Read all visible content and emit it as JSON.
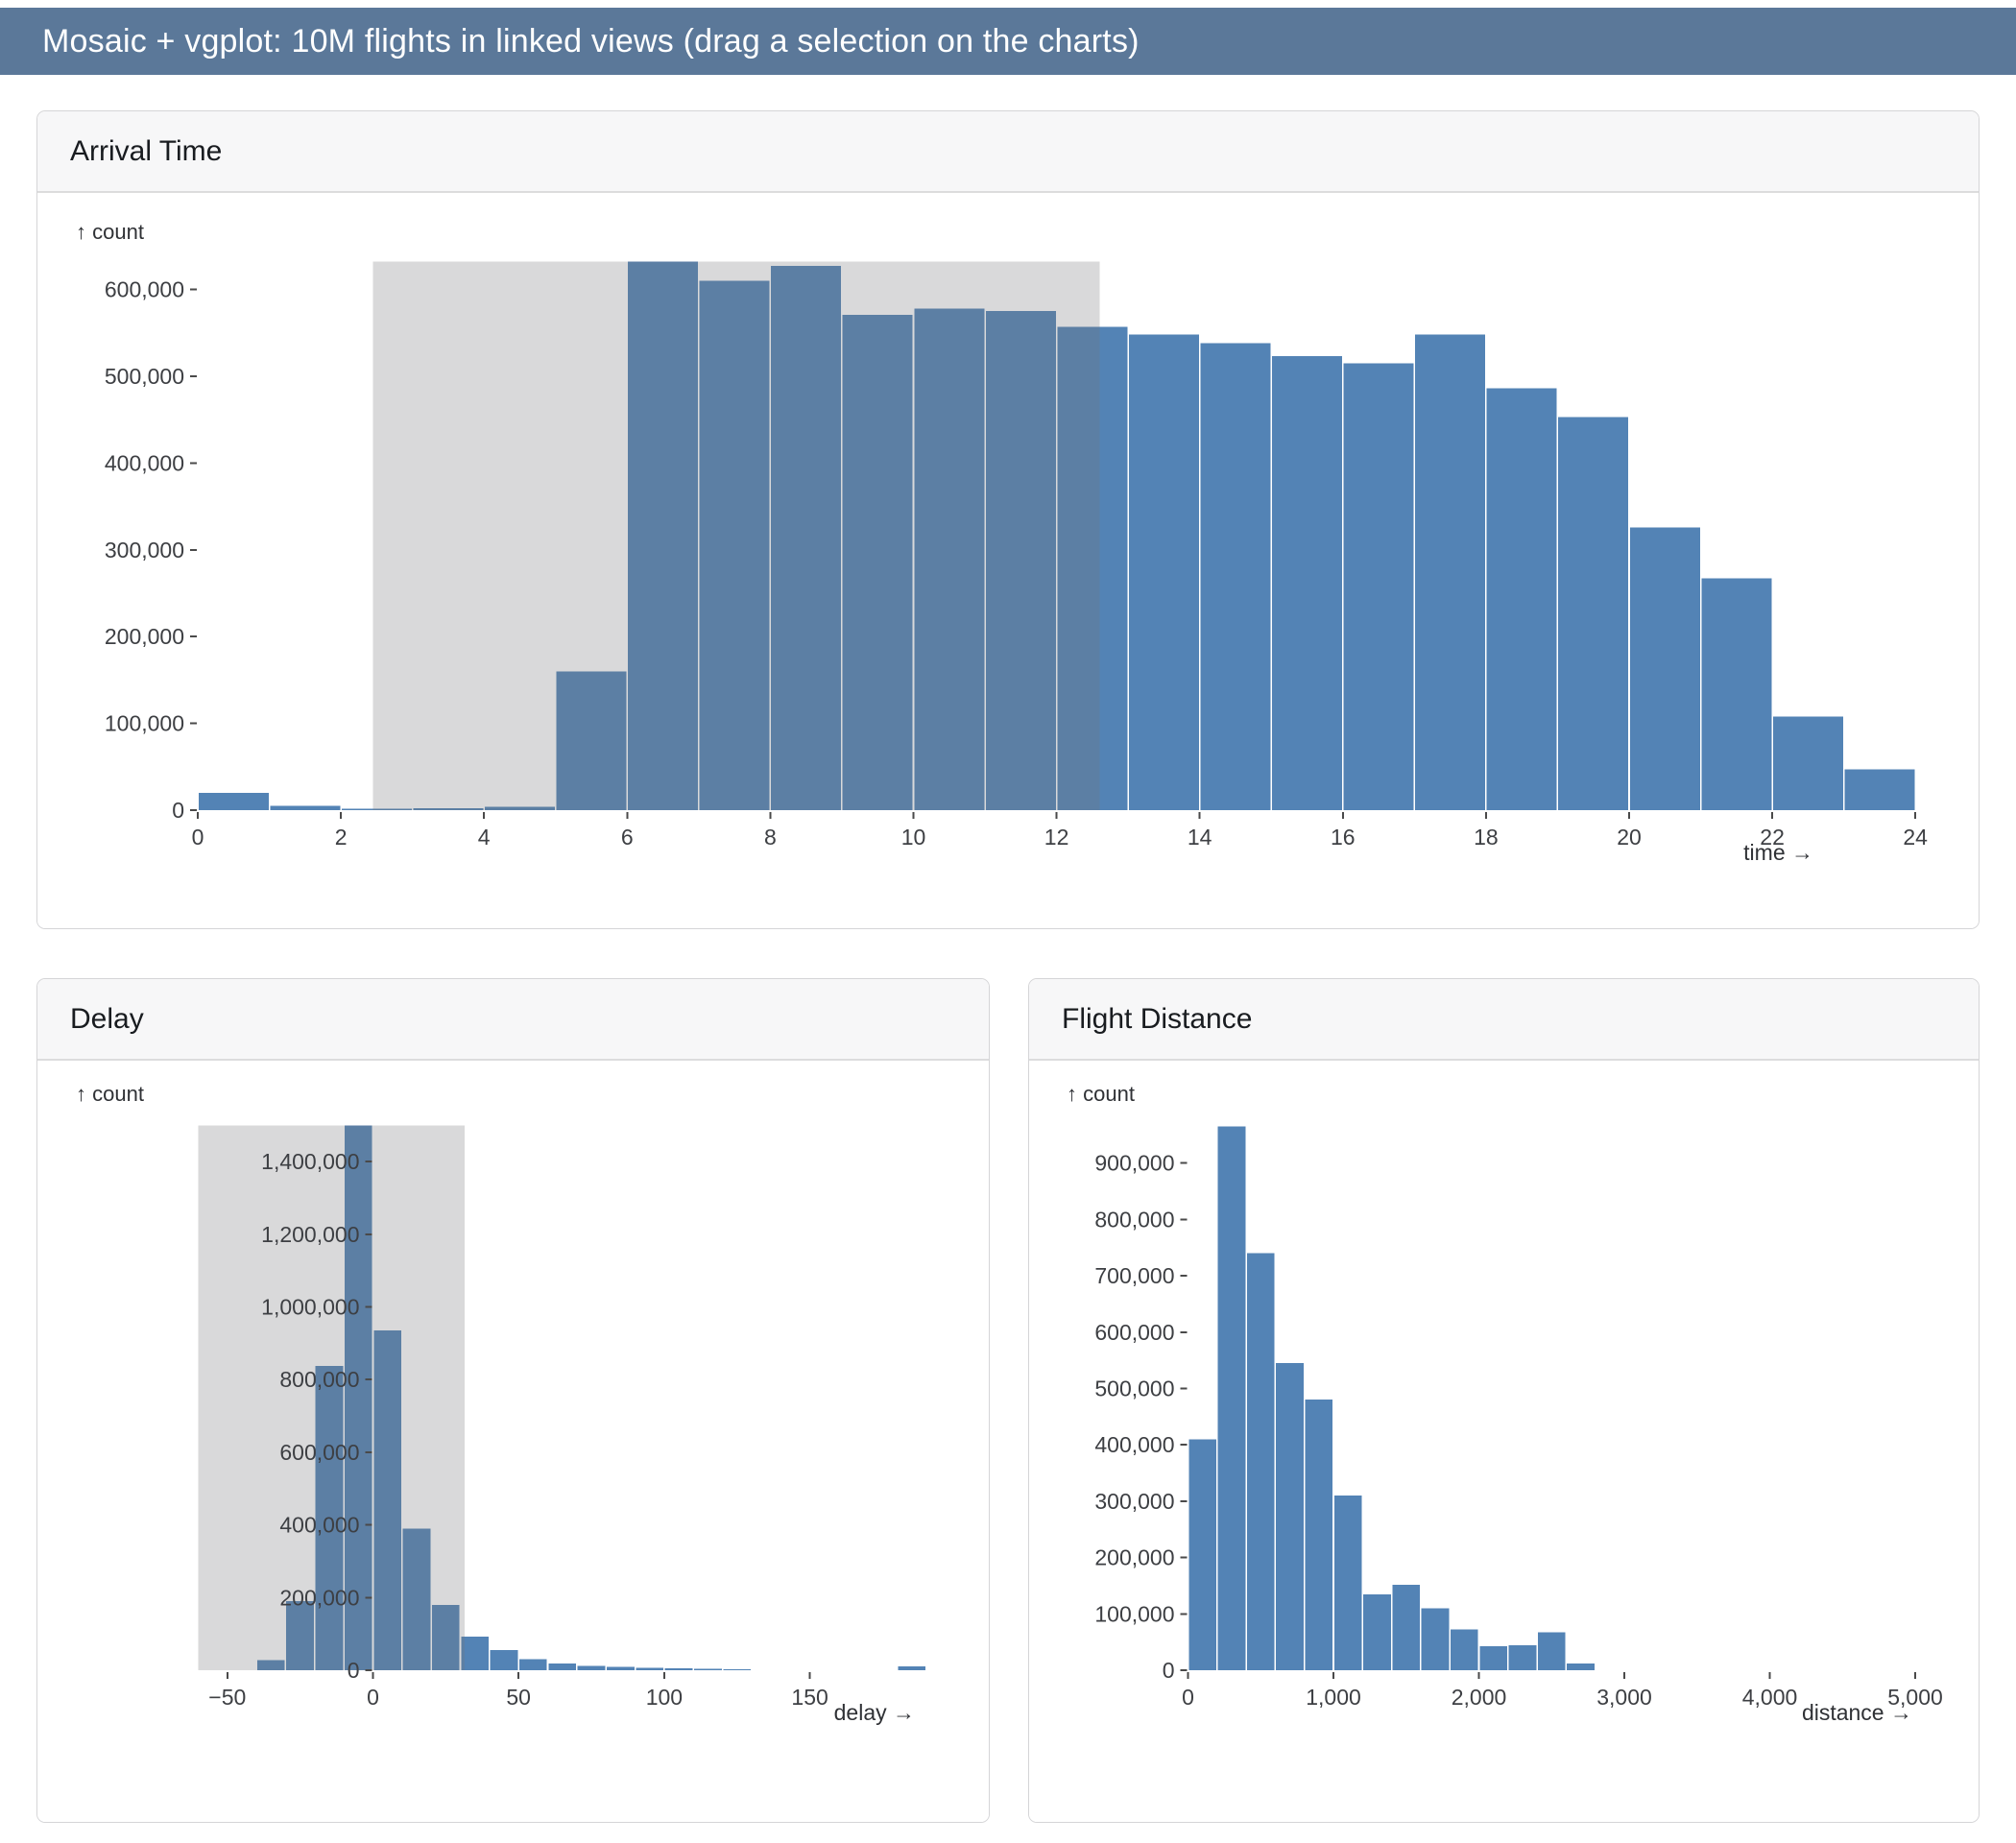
{
  "header": {
    "title": "Mosaic + vgplot: 10M flights in linked views (drag a selection on the charts)"
  },
  "colors": {
    "header_bg": "#5b7899",
    "header_text": "#ffffff",
    "bar": "#5383b5",
    "brush_overlay": "rgba(118,118,122,0.28)",
    "card_border": "#d5d5d7",
    "card_header_bg": "#f7f7f8",
    "divider": "#dcdcdd",
    "tick": "#4a4a4a",
    "tick_text": "#3d3f43",
    "label_text": "#2f3135",
    "title_text": "#191c20"
  },
  "chart_data": [
    {
      "id": "arrival-time",
      "type": "bar",
      "title": "Arrival Time",
      "ylabel": "↑ count",
      "xlabel": "time →",
      "bin_start": 0,
      "bin_size": 1,
      "values": [
        20000,
        5000,
        1500,
        2000,
        4000,
        160000,
        632000,
        610000,
        627000,
        571000,
        578000,
        575000,
        557000,
        548000,
        538000,
        523000,
        515000,
        548000,
        486000,
        453000,
        326000,
        267000,
        108000,
        47000
      ],
      "x_ticks": [
        0,
        2,
        4,
        6,
        8,
        10,
        12,
        14,
        16,
        18,
        20,
        22,
        24
      ],
      "y_ticks": [
        0,
        100000,
        200000,
        300000,
        400000,
        500000,
        600000
      ],
      "xlim": [
        0,
        24
      ],
      "ylim": [
        0,
        632000
      ],
      "grid": false,
      "legend": "none",
      "selection": {
        "from": 2.45,
        "to": 12.6
      }
    },
    {
      "id": "delay",
      "type": "bar",
      "title": "Delay",
      "ylabel": "↑ count",
      "xlabel": "delay →",
      "bin_start": -40,
      "bin_size": 10,
      "values": [
        28000,
        190000,
        837000,
        1500000,
        935000,
        390000,
        180000,
        92000,
        55000,
        30000,
        18000,
        12000,
        9000,
        7000,
        5000,
        3500,
        2000,
        0,
        0,
        0,
        0,
        0,
        10000
      ],
      "x_ticks": [
        -50,
        0,
        50,
        100,
        150
      ],
      "y_ticks": [
        0,
        200000,
        400000,
        600000,
        800000,
        1000000,
        1200000,
        1400000
      ],
      "xlim": [
        -60,
        200
      ],
      "ylim": [
        0,
        1500000
      ],
      "grid": false,
      "legend": "none",
      "selection": {
        "from": -60,
        "to": 31.5
      }
    },
    {
      "id": "flight-distance",
      "type": "bar",
      "title": "Flight Distance",
      "ylabel": "↑ count",
      "xlabel": "distance →",
      "bin_start": 0,
      "bin_size": 200,
      "values": [
        410000,
        965000,
        740000,
        545000,
        480000,
        310000,
        135000,
        152000,
        110000,
        72000,
        43000,
        44000,
        67000,
        12000
      ],
      "x_ticks": [
        0,
        1000,
        2000,
        3000,
        4000,
        5000
      ],
      "y_ticks": [
        0,
        100000,
        200000,
        300000,
        400000,
        500000,
        600000,
        700000,
        800000,
        900000
      ],
      "xlim": [
        0,
        5100
      ],
      "ylim": [
        0,
        965000
      ],
      "grid": false,
      "legend": "none",
      "selection": null
    }
  ]
}
